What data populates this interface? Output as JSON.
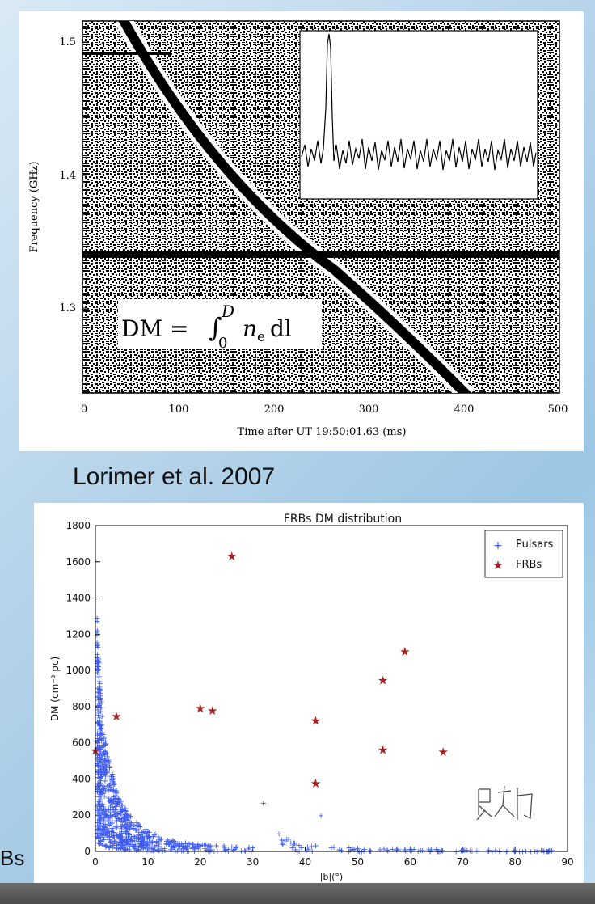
{
  "top_figure": {
    "ylabel": "Frequency (GHz)",
    "xlabel": "Time after UT 19:50:01.63 (ms)",
    "y_ticks": [
      "1.5",
      "1.4",
      "1.3"
    ],
    "x_ticks": [
      "0",
      "100",
      "200",
      "300",
      "400",
      "500"
    ],
    "equation": {
      "lhs": "DM = ",
      "integral": "∫",
      "upper": "D",
      "lower": "0",
      "rhs": "n",
      "sub": "e",
      "dl": "dl"
    },
    "colors": {
      "noise": "#000000",
      "background": "#ffffff"
    }
  },
  "caption": "Lorimer et al. 2007",
  "side_text": "Bs",
  "chart_data": [
    {
      "type": "scatter",
      "title": "FRBs DM distribution",
      "xlabel": "|b|(°)",
      "ylabel": "DM (cm⁻³ pc)",
      "xlim": [
        0,
        90
      ],
      "ylim": [
        0,
        1800
      ],
      "x_ticks": [
        "0",
        "10",
        "20",
        "30",
        "40",
        "50",
        "60",
        "70",
        "80",
        "90"
      ],
      "y_ticks": [
        "0",
        "200",
        "400",
        "600",
        "800",
        "1000",
        "1200",
        "1400",
        "1600",
        "1800"
      ],
      "grid": false,
      "legend": {
        "placement": "top-right",
        "entries": [
          "Pulsars",
          "FRBs"
        ]
      },
      "series": [
        {
          "name": "Pulsars",
          "marker": "+",
          "color": "#3f5cf0",
          "points": [
            [
              0.3,
              1200
            ],
            [
              0.5,
              1050
            ],
            [
              0.8,
              900
            ],
            [
              1,
              800
            ],
            [
              1.5,
              650
            ],
            [
              2,
              550
            ],
            [
              3,
              420
            ],
            [
              4,
              330
            ],
            [
              5,
              260
            ],
            [
              6,
              210
            ],
            [
              8,
              150
            ],
            [
              10,
              110
            ],
            [
              12,
              85
            ],
            [
              15,
              60
            ],
            [
              18,
              45
            ],
            [
              22,
              35
            ],
            [
              26,
              30
            ],
            [
              30,
              25
            ],
            [
              32,
              270
            ],
            [
              35,
              100
            ],
            [
              38,
              50
            ],
            [
              42,
              35
            ],
            [
              43,
              200
            ],
            [
              45,
              25
            ],
            [
              50,
              20
            ],
            [
              55,
              18
            ],
            [
              60,
              15
            ],
            [
              65,
              15
            ],
            [
              70,
              12
            ],
            [
              75,
              12
            ],
            [
              80,
              10
            ],
            [
              85,
              10
            ],
            [
              87,
              8
            ]
          ]
        },
        {
          "name": "FRBs",
          "marker": "*",
          "color": "#a32323",
          "points": [
            [
              0,
              555
            ],
            [
              4,
              745
            ],
            [
              20,
              790
            ],
            [
              22.3,
              778
            ],
            [
              26,
              1630
            ],
            [
              42,
              722
            ],
            [
              42,
              375
            ],
            [
              54.8,
              945
            ],
            [
              54.8,
              560
            ],
            [
              59,
              1103
            ],
            [
              66.3,
              550
            ]
          ]
        }
      ]
    }
  ]
}
